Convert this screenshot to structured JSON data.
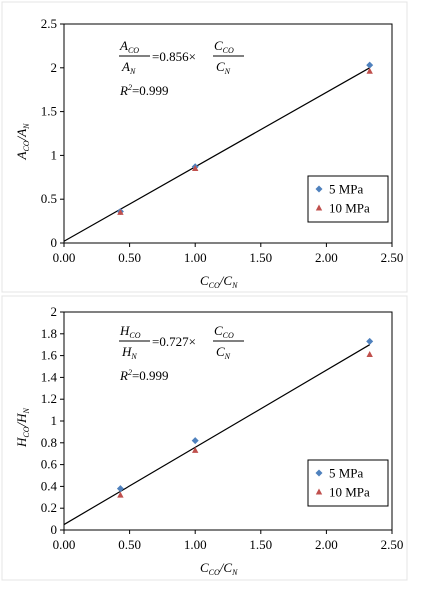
{
  "chart_data": [
    {
      "type": "scatter",
      "xlim": [
        0,
        2.5
      ],
      "ylim": [
        0,
        2.5
      ],
      "x_ticks": [
        "0.00",
        "0.50",
        "1.00",
        "1.50",
        "2.00",
        "2.50"
      ],
      "y_ticks": [
        "0",
        "0.5",
        "1",
        "1.5",
        "2",
        "2.5"
      ],
      "ylabel": {
        "main1": "A",
        "sub1": "CO",
        "main2": "/A",
        "sub2": "N"
      },
      "xlabel": {
        "main1": "C",
        "sub1": "CO",
        "main2": "/C",
        "sub2": "N"
      },
      "equation": {
        "lhs_num_main": "A",
        "lhs_num_sub": "CO",
        "lhs_den_main": "A",
        "lhs_den_sub": "N",
        "coef": "=0.856×",
        "rhs_num_main": "C",
        "rhs_num_sub": "CO",
        "rhs_den_main": "C",
        "rhs_den_sub": "N",
        "r2_main": "R",
        "r2_sup": "2",
        "r2_value": "=0.999"
      },
      "fit_line": {
        "x": [
          0.0,
          2.33
        ],
        "y": [
          0.02,
          2.0
        ]
      },
      "legend_position": "bottom-right",
      "series": [
        {
          "name": "5 MPa",
          "marker": "diamond",
          "color": "#4f81bd",
          "x": [
            0.43,
            1.0,
            2.33
          ],
          "y": [
            0.36,
            0.87,
            2.03
          ]
        },
        {
          "name": "10 MPa",
          "marker": "triangle",
          "color": "#c0504d",
          "x": [
            0.43,
            1.0,
            2.33
          ],
          "y": [
            0.35,
            0.85,
            1.96
          ]
        }
      ]
    },
    {
      "type": "scatter",
      "xlim": [
        0,
        2.5
      ],
      "ylim": [
        0,
        2.0
      ],
      "x_ticks": [
        "0.00",
        "0.50",
        "1.00",
        "1.50",
        "2.00",
        "2.50"
      ],
      "y_ticks": [
        "0",
        "0.2",
        "0.4",
        "0.6",
        "0.8",
        "1",
        "1.2",
        "1.4",
        "1.6",
        "1.8",
        "2"
      ],
      "ylabel": {
        "main1": "H",
        "sub1": "CO",
        "main2": "/H",
        "sub2": "N"
      },
      "xlabel": {
        "main1": "C",
        "sub1": "CO",
        "main2": "/C",
        "sub2": "N"
      },
      "equation": {
        "lhs_num_main": "H",
        "lhs_num_sub": "CO",
        "lhs_den_main": "H",
        "lhs_den_sub": "N",
        "coef": "=0.727×",
        "rhs_num_main": "C",
        "rhs_num_sub": "CO",
        "rhs_den_main": "C",
        "rhs_den_sub": "N",
        "r2_main": "R",
        "r2_sup": "2",
        "r2_value": "=0.999"
      },
      "fit_line": {
        "x": [
          0.0,
          2.33
        ],
        "y": [
          0.05,
          1.7
        ]
      },
      "legend_position": "bottom-right",
      "series": [
        {
          "name": "5 MPa",
          "marker": "diamond",
          "color": "#4f81bd",
          "x": [
            0.43,
            1.0,
            2.33
          ],
          "y": [
            0.38,
            0.82,
            1.73
          ]
        },
        {
          "name": "10 MPa",
          "marker": "triangle",
          "color": "#c0504d",
          "x": [
            0.43,
            1.0,
            2.33
          ],
          "y": [
            0.32,
            0.73,
            1.61
          ]
        }
      ]
    }
  ]
}
